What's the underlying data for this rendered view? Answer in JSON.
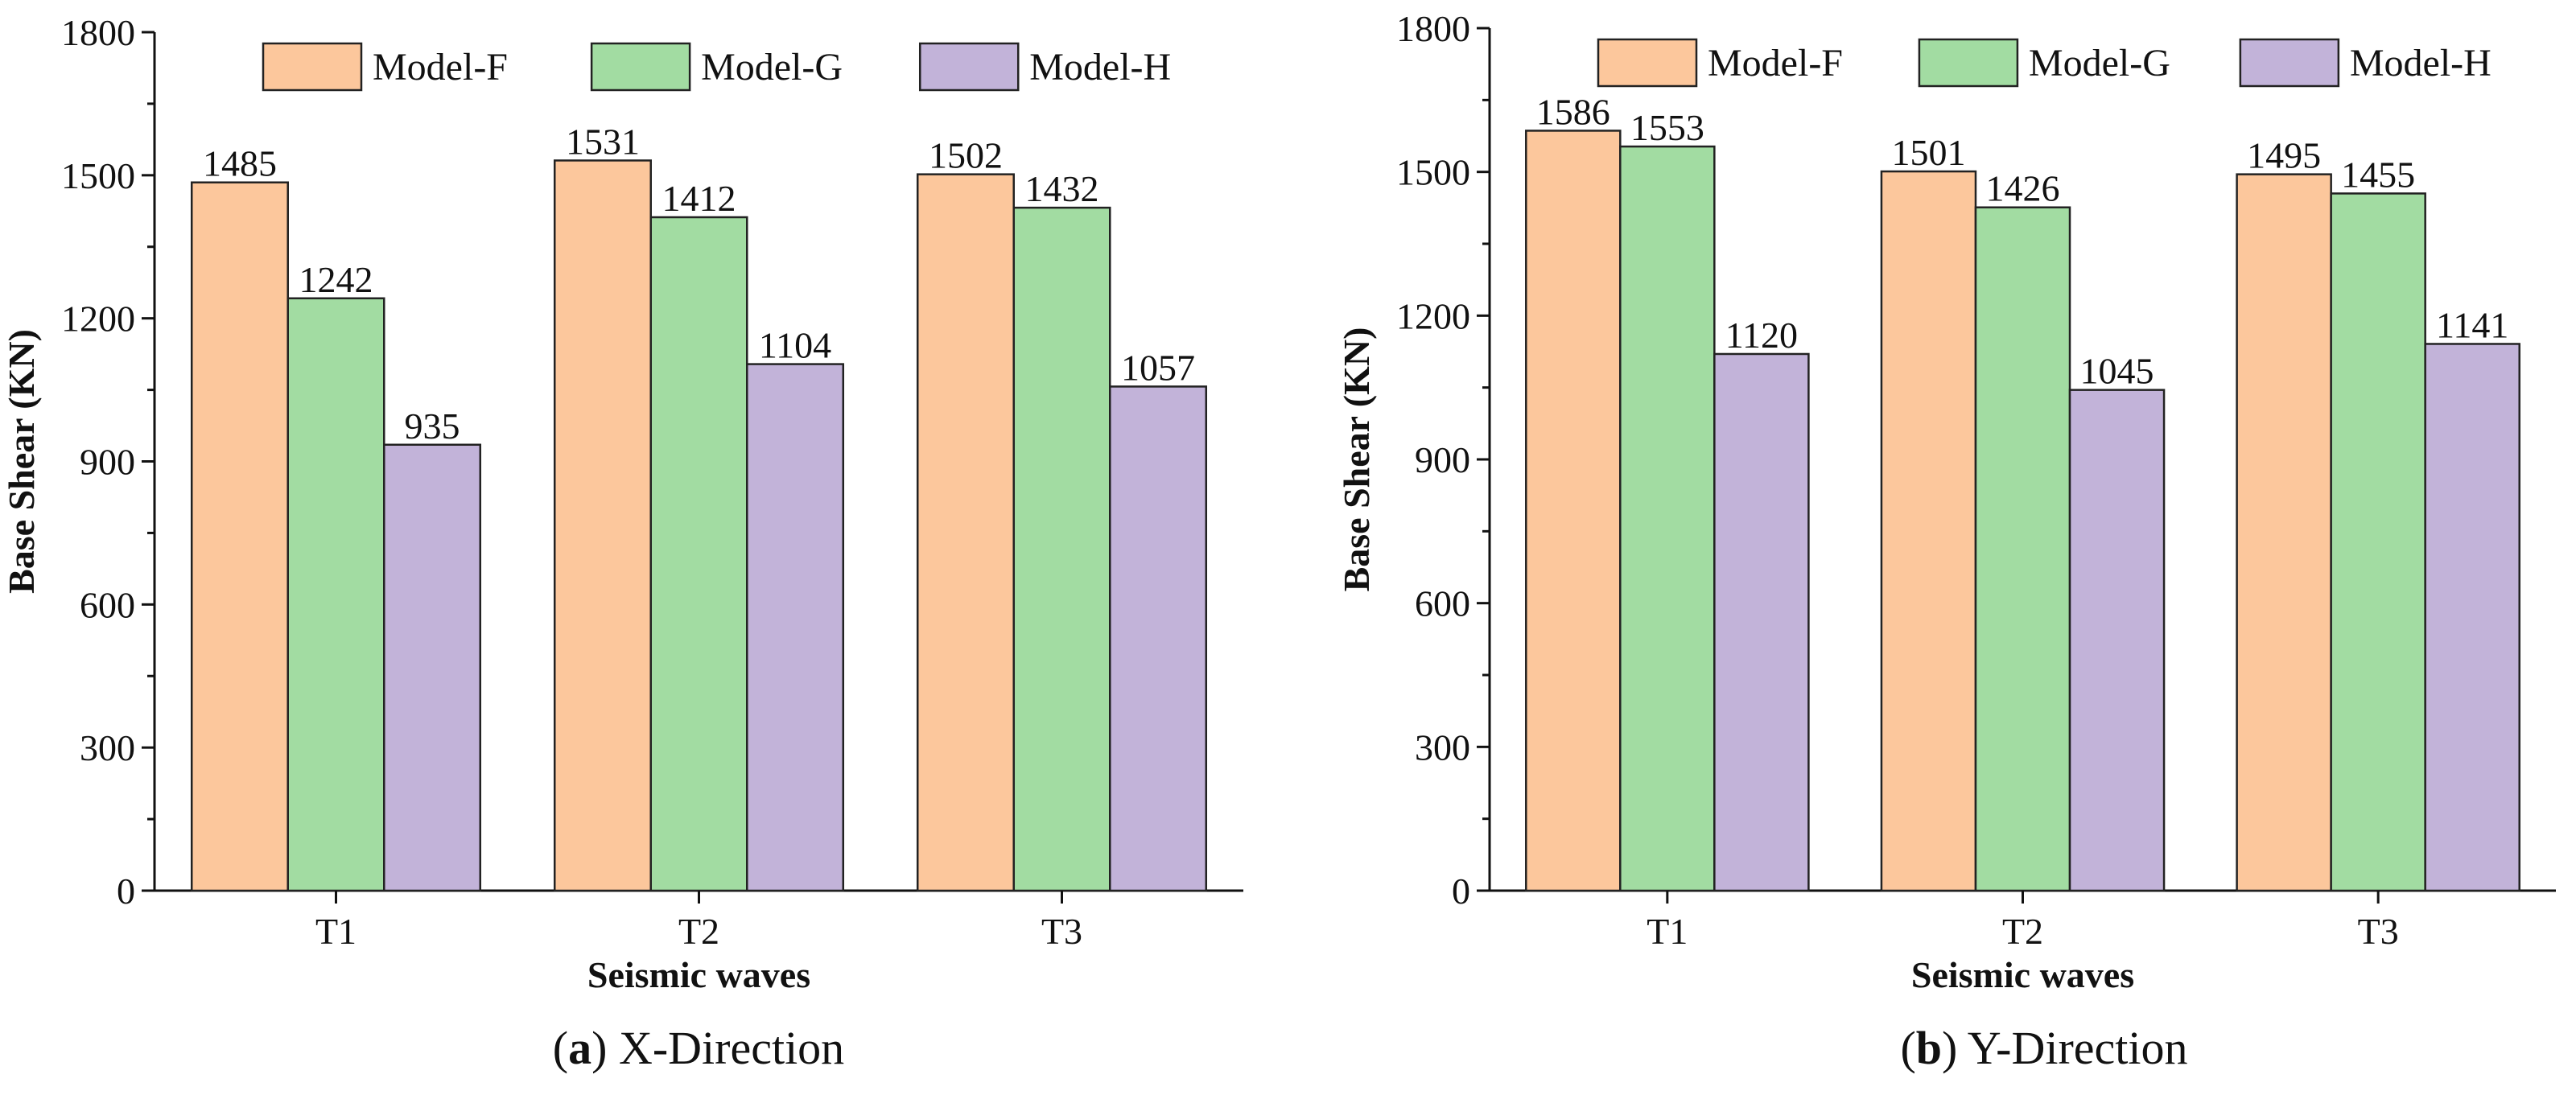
{
  "chart_data": [
    {
      "type": "bar",
      "panel": "a",
      "caption": {
        "tag": "a",
        "text": "X-Direction"
      },
      "categories": [
        "T1",
        "T2",
        "T3"
      ],
      "series": [
        {
          "name": "Model-F",
          "values": [
            1485,
            1531,
            1502
          ]
        },
        {
          "name": "Model-G",
          "values": [
            1242,
            1412,
            1432
          ]
        },
        {
          "name": "Model-H",
          "values": [
            935,
            1104,
            1057
          ]
        }
      ],
      "xlabel": "Seismic waves",
      "ylabel": "Base Shear (KN)",
      "ylim": [
        0,
        1800
      ],
      "yticks": [
        0,
        300,
        600,
        900,
        1200,
        1500,
        1800
      ],
      "legend": "top",
      "grid": false
    },
    {
      "type": "bar",
      "panel": "b",
      "caption": {
        "tag": "b",
        "text": "Y-Direction"
      },
      "categories": [
        "T1",
        "T2",
        "T3"
      ],
      "series": [
        {
          "name": "Model-F",
          "values": [
            1586,
            1501,
            1495
          ]
        },
        {
          "name": "Model-G",
          "values": [
            1553,
            1426,
            1455
          ]
        },
        {
          "name": "Model-H",
          "values": [
            1120,
            1045,
            1141
          ]
        }
      ],
      "xlabel": "Seismic waves",
      "ylabel": "Base Shear (KN)",
      "ylim": [
        0,
        1800
      ],
      "yticks": [
        0,
        300,
        600,
        900,
        1200,
        1500,
        1800
      ],
      "legend": "top",
      "grid": false
    }
  ],
  "colors": {
    "Model-F": "#fcc79c",
    "Model-G": "#a2dca2",
    "Model-H": "#c2b3d9"
  }
}
